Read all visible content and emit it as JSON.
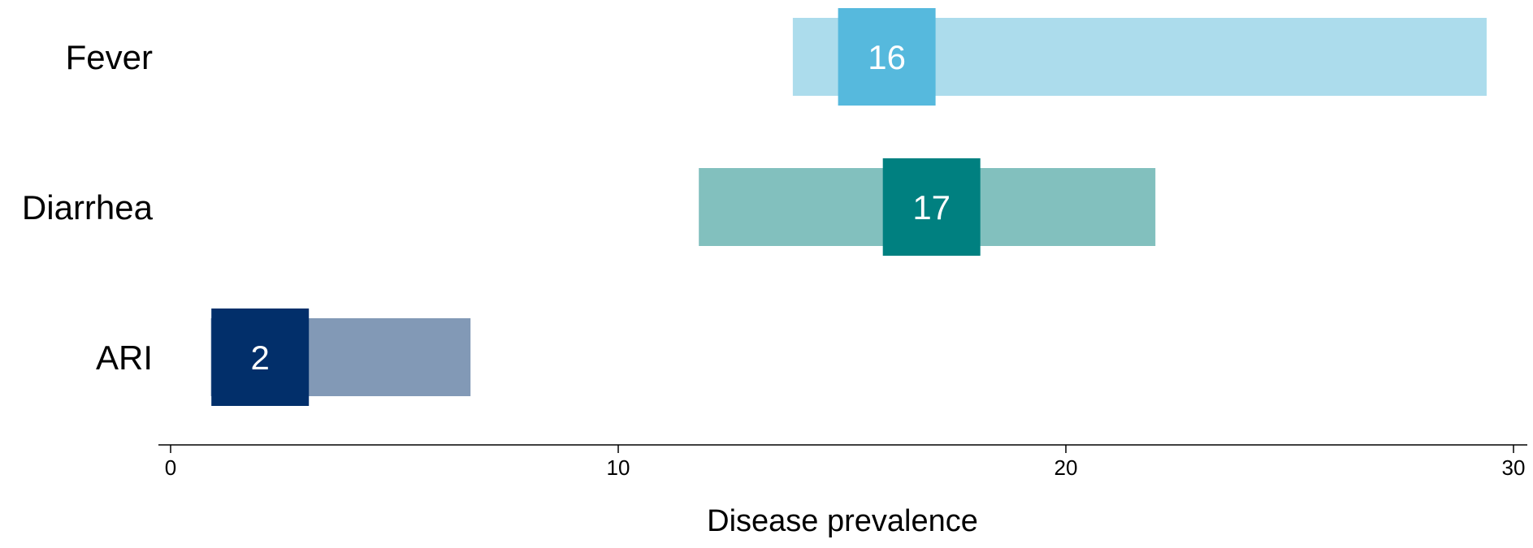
{
  "chart_data": {
    "type": "bar",
    "xlabel": "Disease prevalence",
    "ylabel": "",
    "xlim": [
      0,
      30
    ],
    "xticks": [
      "0",
      "10",
      "20",
      "30"
    ],
    "grid": false,
    "legend": "none",
    "series": [
      {
        "category": "Fever",
        "range": [
          13.9,
          29.4
        ],
        "value": 16,
        "value_label": "16",
        "light_color": "#acdcec",
        "dark_color": "#56b9dd"
      },
      {
        "category": "Diarrhea",
        "range": [
          11.8,
          22.0
        ],
        "value": 17,
        "value_label": "17",
        "light_color": "#82c0be",
        "dark_color": "#008080"
      },
      {
        "category": "ARI",
        "range": [
          0.9,
          6.7
        ],
        "value": 2,
        "value_label": "2",
        "light_color": "#8299b6",
        "dark_color": "#022f6a"
      }
    ]
  }
}
